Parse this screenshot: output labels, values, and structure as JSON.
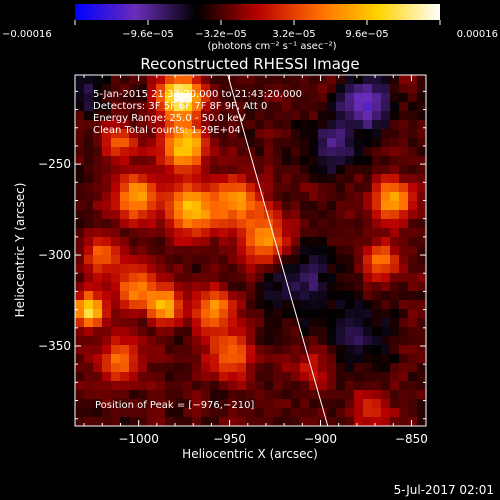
{
  "chart_data": {
    "type": "heatmap",
    "title": "Reconstructed RHESSI Image",
    "xlabel": "Heliocentric X (arcsec)",
    "ylabel": "Heliocentric Y (arcsec)",
    "xlim": [
      -1035,
      -842
    ],
    "ylim": [
      -394,
      -201
    ],
    "xticks": [
      -1000,
      -950,
      -900,
      -850
    ],
    "xtick_labels": [
      "−1000",
      "−950",
      "−900",
      "−850"
    ],
    "yticks": [
      -250,
      -300,
      -350
    ],
    "ytick_labels": [
      "−250",
      "−300",
      "−350"
    ],
    "colorbar": {
      "range": [
        -0.00016,
        0.00016
      ],
      "ticks": [
        -0.00016,
        -9.6e-05,
        -3.2e-05,
        3.2e-05,
        9.6e-05,
        0.00016
      ],
      "tick_labels": [
        "−0.00016",
        "−9.6e−05",
        "−3.2e−05",
        "3.2e−05",
        "9.6e−05",
        "0.00016"
      ],
      "unit_label": "(photons cm⁻² s⁻¹ asec⁻²)",
      "colors": [
        "#0000ff",
        "#6a2db8",
        "#000000",
        "#b80000",
        "#ff6a00",
        "#ffd400",
        "#ffffff"
      ]
    },
    "annotations": {
      "time": "5-Jan-2015 21:33:20.000 to 21:43:20.000",
      "detectors": "Detectors: 3F 5F 6F 7F 8F 9F, Att 0",
      "energy": "Energy Range: 25.0 - 50.0 keV",
      "clean": "Clean    Total counts: 1.29E+04",
      "peak": "Position of Peak = [−976,−210]"
    },
    "peak": {
      "x": -976,
      "y": -210
    },
    "limb_line": [
      {
        "x": -951,
        "y": -201
      },
      {
        "x": -896,
        "y": -394
      }
    ]
  },
  "footer": {
    "date": "5-Jul-2017 02:01"
  }
}
